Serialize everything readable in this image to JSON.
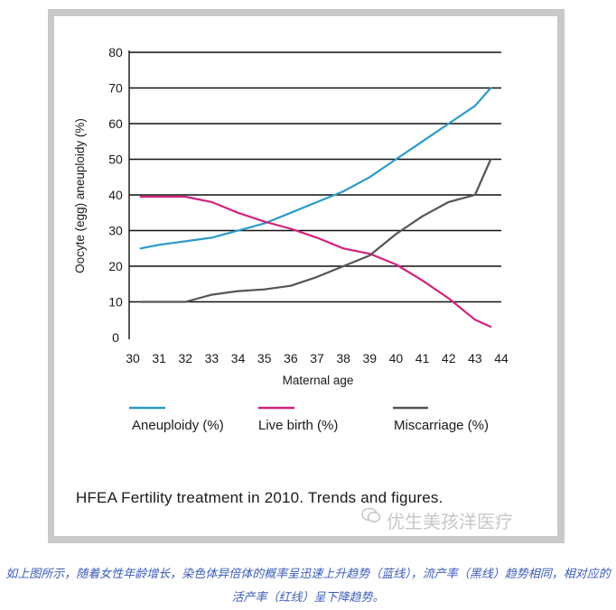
{
  "chart_data": {
    "type": "line",
    "title": "",
    "xlabel": "Maternal age",
    "ylabel": "Oocyte (egg) aneuploidy (%)",
    "xlim": [
      30,
      44
    ],
    "ylim": [
      0,
      80
    ],
    "xticks": [
      30,
      31,
      32,
      33,
      34,
      35,
      36,
      37,
      38,
      39,
      40,
      41,
      42,
      43,
      44
    ],
    "yticks": [
      0,
      10,
      20,
      30,
      40,
      50,
      60,
      70,
      80
    ],
    "grid": "horizontal",
    "legend_position": "bottom",
    "series": [
      {
        "name": "Aneuploidy (%)",
        "color": "#2b9ac9",
        "x": [
          30.3,
          31,
          32,
          33,
          34,
          35,
          36,
          37,
          38,
          39,
          40,
          41,
          42,
          43,
          43.6
        ],
        "y": [
          25,
          26,
          27,
          28,
          30,
          32,
          35,
          38,
          41,
          45,
          50,
          55,
          60,
          65,
          70
        ]
      },
      {
        "name": "Live birth (%)",
        "color": "#d1237c",
        "x": [
          30.3,
          31,
          32,
          33,
          34,
          35,
          36,
          37,
          38,
          39,
          40,
          41,
          42,
          43,
          43.6
        ],
        "y": [
          39.5,
          39.5,
          39.5,
          38,
          35,
          32.5,
          30.5,
          28,
          25,
          23.5,
          20.5,
          16,
          11,
          5,
          3
        ]
      },
      {
        "name": "Miscarriage (%)",
        "color": "#555555",
        "x": [
          30.3,
          31,
          32,
          33,
          34,
          35,
          36,
          37,
          38,
          39,
          40,
          41,
          42,
          43,
          43.6
        ],
        "y": [
          10,
          10,
          10,
          12,
          13,
          13.5,
          14.5,
          17,
          20,
          23,
          29,
          34,
          38,
          40,
          50
        ]
      }
    ]
  },
  "source_text": "HFEA Fertility treatment in 2010. Trends and figures.",
  "watermark_text": "优生美孩洋医疗",
  "caption_text": "如上图所示，随着女性年龄增长，染色体异倍体的概率呈迅速上升趋势（蓝线），流产率（黑线）趋势相同，相对应的活产率（红线）呈下降趋势。"
}
